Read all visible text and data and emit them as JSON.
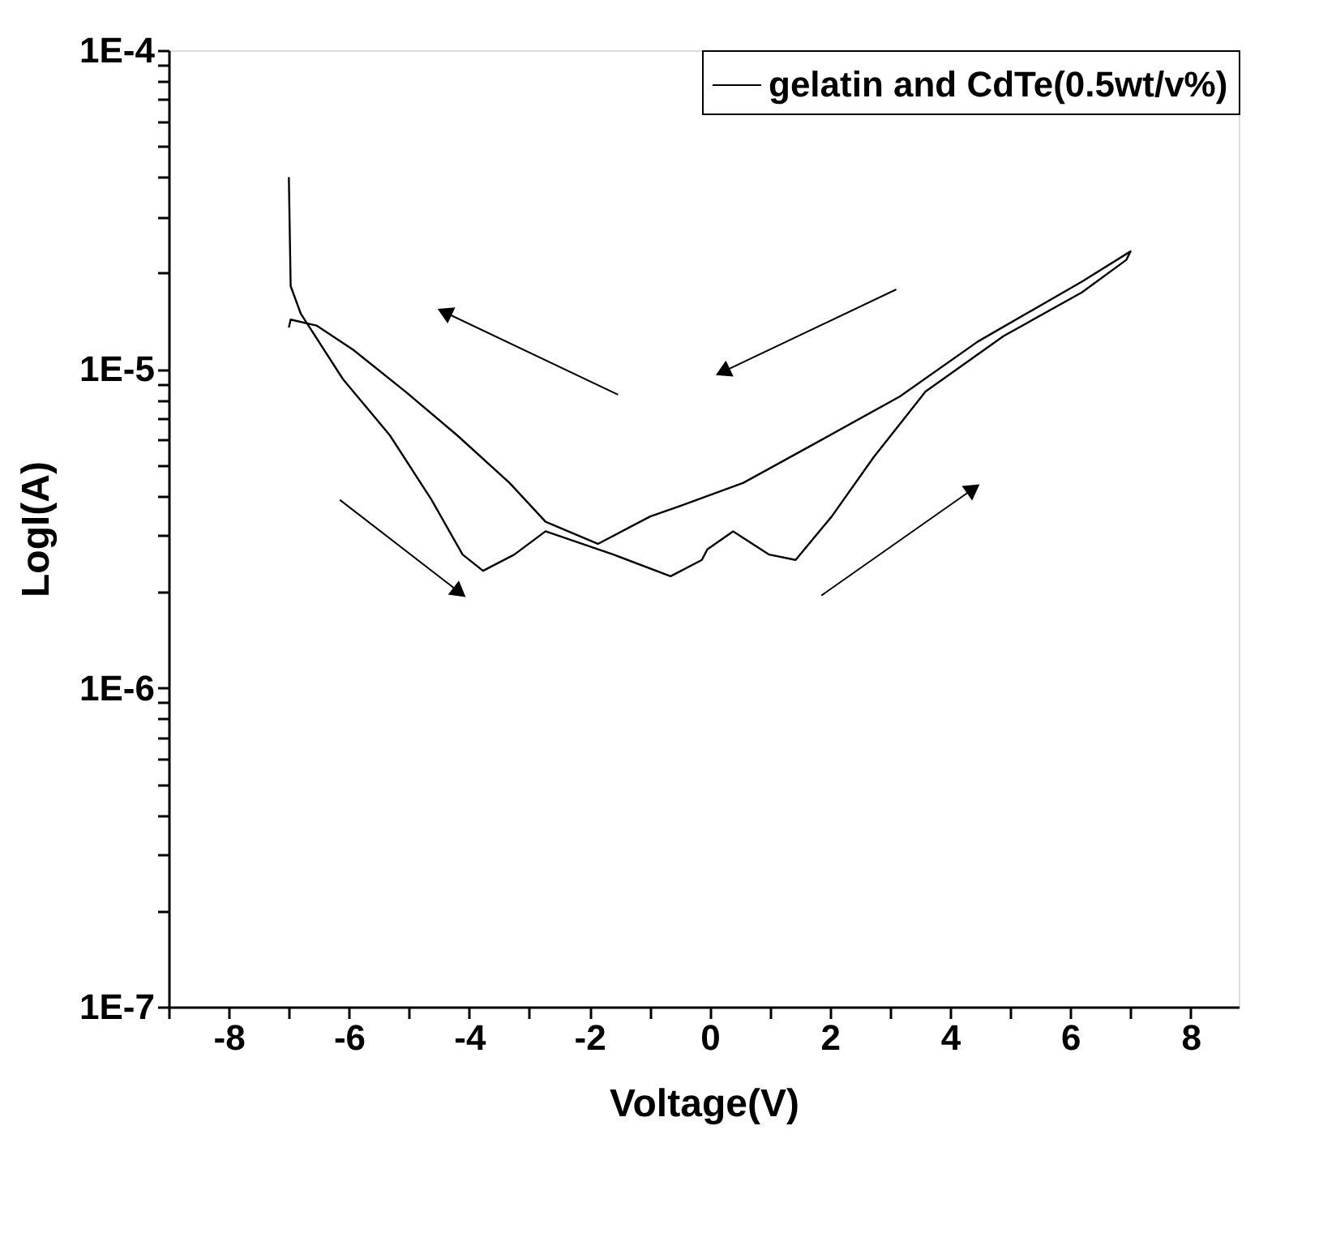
{
  "chart_data": {
    "type": "line",
    "xlabel": "Voltage(V)",
    "ylabel": "LogI(A)",
    "series": [
      {
        "name": "gelatin and CdTe(0.5wt/v%)",
        "color": "#000000",
        "x": [
          -7.0,
          -6.97,
          -6.8,
          -6.1,
          -5.32,
          -4.63,
          -4.11,
          -3.77,
          -3.25,
          -2.73,
          -1.6,
          -0.65,
          -0.13,
          -0.04,
          0.39,
          0.99,
          1.43,
          2.03,
          2.73,
          3.59,
          4.89,
          6.19,
          6.93,
          7.0,
          6.19,
          4.46,
          3.16,
          1.86,
          0.56,
          -0.48,
          -0.99,
          -1.86,
          -2.73,
          -3.33,
          -4.2,
          -5.06,
          -5.93,
          -6.54,
          -6.97,
          -7.0
        ],
        "values": [
          4e-05,
          1.82e-05,
          1.49e-05,
          9.3e-06,
          6.2e-06,
          3.9e-06,
          2.62e-06,
          2.33e-06,
          2.62e-06,
          3.1e-06,
          2.62e-06,
          2.24e-06,
          2.52e-06,
          2.72e-06,
          3.1e-06,
          2.62e-06,
          2.52e-06,
          3.45e-06,
          5.3e-06,
          8.5e-06,
          1.27e-05,
          1.74e-05,
          2.2e-05,
          2.34e-05,
          1.88e-05,
          1.22e-05,
          8.2e-06,
          6e-06,
          4.4e-06,
          3.73e-06,
          3.45e-06,
          2.83e-06,
          3.32e-06,
          4.4e-06,
          6.2e-06,
          8.5e-06,
          1.15e-05,
          1.37e-05,
          1.43e-05,
          1.35e-05
        ]
      }
    ],
    "xlim": [
      -9,
      8.8
    ],
    "xticks": [
      {
        "value": -9,
        "label": null
      },
      -8,
      {
        "value": -7,
        "label": null
      },
      -6,
      {
        "value": -5,
        "label": null
      },
      -4,
      {
        "value": -3,
        "label": null
      },
      -2,
      {
        "value": -1,
        "label": null
      },
      0,
      {
        "value": 1,
        "label": null
      },
      2,
      {
        "value": 3,
        "label": null
      },
      4,
      {
        "value": 5,
        "label": null
      },
      6,
      {
        "value": 7,
        "label": null
      },
      8
    ],
    "ylim": [
      1e-07,
      0.0001
    ],
    "yticks": [
      {
        "value": 1e-07,
        "label": "1E-7"
      },
      {
        "value": 2e-07,
        "label": null
      },
      {
        "value": 3e-07,
        "label": null
      },
      {
        "value": 4e-07,
        "label": null
      },
      {
        "value": 5e-07,
        "label": null
      },
      {
        "value": 6e-07,
        "label": null
      },
      {
        "value": 7e-07,
        "label": null
      },
      {
        "value": 8e-07,
        "label": null
      },
      {
        "value": 9e-07,
        "label": null
      },
      {
        "value": 1e-06,
        "label": "1E-6"
      },
      {
        "value": 2e-06,
        "label": null
      },
      {
        "value": 3e-06,
        "label": null
      },
      {
        "value": 4e-06,
        "label": null
      },
      {
        "value": 5e-06,
        "label": null
      },
      {
        "value": 6e-06,
        "label": null
      },
      {
        "value": 7e-06,
        "label": null
      },
      {
        "value": 8e-06,
        "label": null
      },
      {
        "value": 9e-06,
        "label": null
      },
      {
        "value": 1e-05,
        "label": "1E-5"
      },
      {
        "value": 2e-05,
        "label": null
      },
      {
        "value": 3e-05,
        "label": null
      },
      {
        "value": 4e-05,
        "label": null
      },
      {
        "value": 5e-05,
        "label": null
      },
      {
        "value": 6e-05,
        "label": null
      },
      {
        "value": 7e-05,
        "label": null
      },
      {
        "value": 8e-05,
        "label": null
      },
      {
        "value": 9e-05,
        "label": null
      },
      {
        "value": 0.0001,
        "label": "1E-4"
      }
    ],
    "log": "y",
    "grid": false,
    "legend": "top right",
    "marker": "none",
    "line_style": "solid"
  }
}
